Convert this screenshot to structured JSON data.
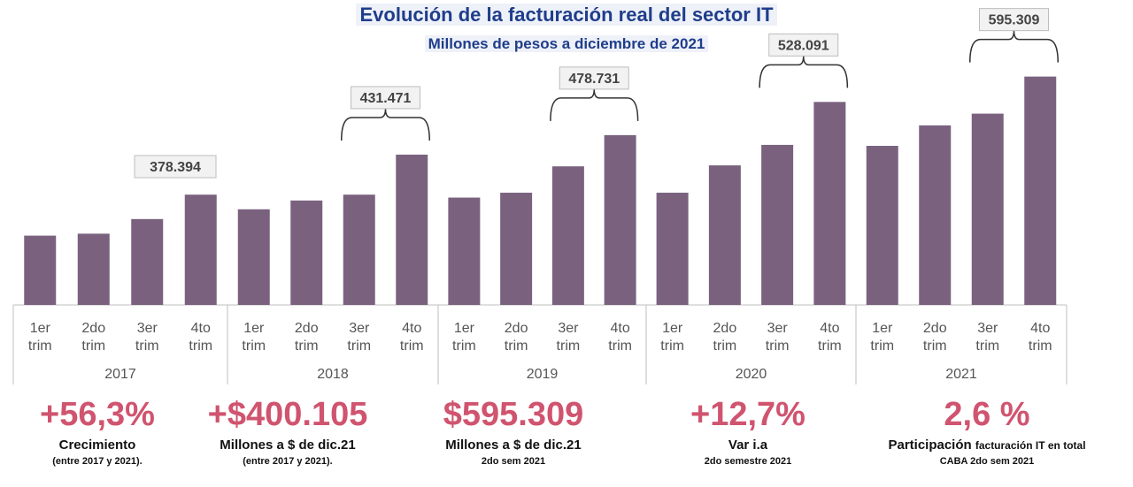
{
  "header": {
    "title": "Evolución de la facturación real del sector IT",
    "subtitle": "Millones de pesos a diciembre de 2021"
  },
  "colors": {
    "bar": "#7a627f",
    "accent": "#d0546f",
    "title": "#1f3d8a"
  },
  "chart_data": {
    "type": "bar",
    "title": "Evolución de la facturación real del sector IT",
    "subtitle": "Millones de pesos a diciembre de 2021",
    "groups": [
      "2017",
      "2018",
      "2019",
      "2020",
      "2021"
    ],
    "categories": [
      "1er trim",
      "2do trim",
      "3er trim",
      "4to trim"
    ],
    "tick_labels": [
      [
        "1er",
        "trim"
      ],
      [
        "2do",
        "trim"
      ],
      [
        "3er",
        "trim"
      ],
      [
        "4to",
        "trim"
      ]
    ],
    "values": [
      [
        71000,
        73000,
        88000,
        113000
      ],
      [
        98000,
        107000,
        113000,
        154000
      ],
      [
        110000,
        115000,
        142000,
        174000
      ],
      [
        115000,
        143000,
        164000,
        208000
      ],
      [
        163000,
        184000,
        196000,
        234000
      ]
    ],
    "annotations": [
      {
        "group": "2017",
        "label": "378.394"
      },
      {
        "group": "2018",
        "label": "431.471"
      },
      {
        "group": "2019",
        "label": "478.731"
      },
      {
        "group": "2020",
        "label": "528.091"
      },
      {
        "group": "2021",
        "label": "595.309"
      }
    ],
    "ylim": [
      0,
      240000
    ],
    "grid": false,
    "legend": "none"
  },
  "stats": [
    {
      "value": "+56,3%",
      "label": "Crecimiento",
      "note": "(entre 2017 y 2021)."
    },
    {
      "value": "+$400.105",
      "label": "Millones a $ de dic.21",
      "note": "(entre 2017 y 2021)."
    },
    {
      "value": "$595.309",
      "label": "Millones a $ de dic.21",
      "note": "2do sem 2021"
    },
    {
      "value": "+12,7%",
      "label": "Var i.a",
      "note": "2do semestre 2021"
    },
    {
      "value": "2,6 %",
      "label": "Participación",
      "label_small": "facturación IT en total",
      "note": "CABA 2do sem 2021"
    }
  ]
}
